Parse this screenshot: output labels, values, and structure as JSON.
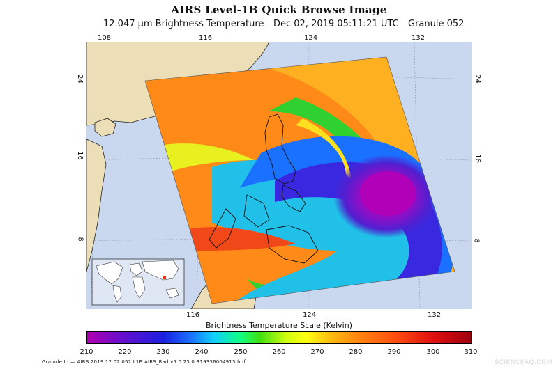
{
  "header": {
    "title": "AIRS Level-1B Quick Browse Image",
    "subtitle_left": "12.047 μm Brightness Temperature",
    "subtitle_date": "Dec 02, 2019 05:11:21 UTC",
    "subtitle_granule": "Granule 052"
  },
  "map": {
    "top_longitudes": [
      "108",
      "116",
      "124",
      "132"
    ],
    "bottom_longitudes": [
      "116",
      "124",
      "132"
    ],
    "left_latitudes": [
      "24",
      "16",
      "8"
    ],
    "right_latitudes": [
      "24",
      "16",
      "8"
    ],
    "colors": {
      "ocean": "#c9d8ef",
      "land": "#ecdfb8",
      "grid": "#9a9ab0"
    }
  },
  "scale": {
    "title": "Brightness Temperature Scale (Kelvin)",
    "ticks": [
      "210",
      "220",
      "230",
      "240",
      "250",
      "260",
      "270",
      "280",
      "290",
      "300",
      "310"
    ]
  },
  "footer": {
    "granule_id": "Granule Id — AIRS.2019.12.02.052.L1B.AIRS_Rad.v5.0.23.0.R19336004913.hdf",
    "watermark": "SCIENCEAQ.COM"
  }
}
